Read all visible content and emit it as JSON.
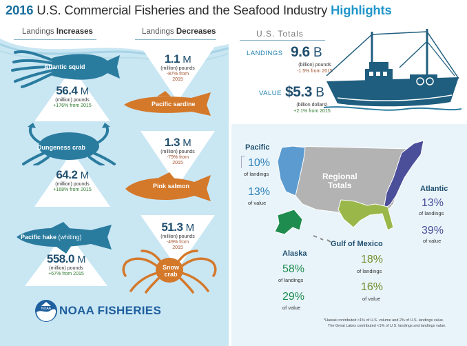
{
  "title": {
    "year": "2016",
    "main": "U.S. Commercial Fisheries and the Seafood Industry",
    "highlight": "Highlights"
  },
  "columns": {
    "increases_prefix": "Landings ",
    "increases_bold": "Increases",
    "decreases_prefix": "Landings ",
    "decreases_bold": "Decreases"
  },
  "increases": [
    {
      "name": "Atlantic squid",
      "name_extra": "",
      "value": "56.4",
      "unit": "M",
      "unit_desc": "(million) pounds",
      "change": "+176% from 2015"
    },
    {
      "name": "Dungeness crab",
      "name_extra": "",
      "value": "64.2",
      "unit": "M",
      "unit_desc": "(million) pounds",
      "change": "+168% from 2015"
    },
    {
      "name": "Pacific hake",
      "name_extra": " (whiting)",
      "value": "558.0",
      "unit": "M",
      "unit_desc": "(million) pounds",
      "change": "+67% from 2015"
    }
  ],
  "decreases": [
    {
      "name": "Pacific sardine",
      "value": "1.1",
      "unit": "M",
      "unit_desc": "(million) pounds",
      "change": "-87% from",
      "change2": "2015"
    },
    {
      "name": "Pink salmon",
      "value": "1.3",
      "unit": "M",
      "unit_desc": "(million) pounds",
      "change": "-79% from",
      "change2": "2015"
    },
    {
      "name": "Snow",
      "name2": "crab",
      "value": "51.3",
      "unit": "M",
      "unit_desc": "(million) pounds",
      "change": "-49% from",
      "change2": "2015"
    }
  ],
  "totals": {
    "title": "U.S. Totals",
    "landings_label": "LANDINGS",
    "landings_value": "9.6",
    "landings_unit": "B",
    "landings_desc": "(billion) pounds",
    "landings_change": "-1.5% from 2015",
    "value_label": "VALUE",
    "value_value": "$5.3",
    "value_unit": "B",
    "value_desc": "(billion dollars)",
    "value_change": "+2.1% from 2015"
  },
  "regional_label": {
    "line1": "Regional",
    "line2": "Totals"
  },
  "regions": {
    "pacific": {
      "name": "Pacific",
      "landings": "10%",
      "landings_desc": "of landings",
      "value": "13%",
      "value_desc": "of value"
    },
    "atlantic": {
      "name": "Atlantic",
      "landings": "13%",
      "landings_desc": "of landings",
      "value": "39%",
      "value_desc": "of value"
    },
    "alaska": {
      "name": "Alaska",
      "landings": "58%",
      "landings_desc": "of landings",
      "value": "29%",
      "value_desc": "of value"
    },
    "gulf": {
      "name": "Gulf of Mexico",
      "landings": "18%",
      "landings_desc": "of landings",
      "value": "16%",
      "value_desc": "of value"
    }
  },
  "colors": {
    "pacific": "#5b9bd0",
    "atlantic": "#4b4f9a",
    "alaska": "#1e8c4e",
    "gulf": "#9ab84a",
    "decrease": "#d4782a",
    "increase": "#2a7c9f"
  },
  "footnote": {
    "line1": "*Hawaii contributed <1% of U.S. volume and 2% of U.S. landings value.",
    "line2": "The Great Lakes contributed <1% of U.S. landings and landings value."
  },
  "logo": {
    "org": "NOAA",
    "name": "NOAA FISHERIES"
  }
}
